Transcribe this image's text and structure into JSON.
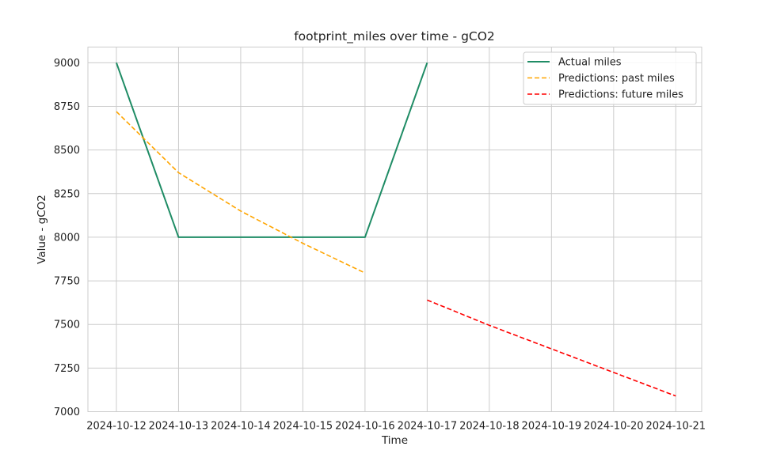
{
  "chart_data": {
    "type": "line",
    "title": "footprint_miles over time - gCO2",
    "xlabel": "Time",
    "ylabel": "Value - gCO2",
    "x": [
      "2024-10-12",
      "2024-10-13",
      "2024-10-14",
      "2024-10-15",
      "2024-10-16",
      "2024-10-17",
      "2024-10-18",
      "2024-10-19",
      "2024-10-20",
      "2024-10-21"
    ],
    "xlim": [
      "2024-10-11 13:00",
      "2024-10-21 10:00"
    ],
    "ylim": [
      7000,
      9090
    ],
    "yticks": [
      7000,
      7250,
      7500,
      7750,
      8000,
      8250,
      8500,
      8750,
      9000
    ],
    "grid": true,
    "legend_position": "top-right",
    "series": [
      {
        "name": "Actual miles",
        "color": "#1f8c65",
        "style": "solid",
        "points": [
          [
            "2024-10-12",
            9000
          ],
          [
            "2024-10-13",
            8000
          ],
          [
            "2024-10-14",
            8000
          ],
          [
            "2024-10-15",
            8000
          ],
          [
            "2024-10-16",
            8000
          ],
          [
            "2024-10-17",
            9000
          ]
        ]
      },
      {
        "name": "Predictions: past miles",
        "color": "#ffa500",
        "style": "dashed",
        "points": [
          [
            "2024-10-12",
            8720
          ],
          [
            "2024-10-13",
            8370
          ],
          [
            "2024-10-14",
            8150
          ],
          [
            "2024-10-15",
            7965
          ],
          [
            "2024-10-16",
            7795
          ]
        ]
      },
      {
        "name": "Predictions: future miles",
        "color": "#ff0000",
        "style": "dashed",
        "points": [
          [
            "2024-10-17",
            7640
          ],
          [
            "2024-10-18",
            7495
          ],
          [
            "2024-10-19",
            7360
          ],
          [
            "2024-10-20",
            7225
          ],
          [
            "2024-10-21",
            7090
          ]
        ]
      }
    ]
  }
}
